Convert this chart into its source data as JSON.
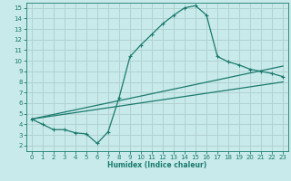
{
  "xlabel": "Humidex (Indice chaleur)",
  "bg_color": "#c8eaea",
  "grid_color": "#b0cece",
  "line_color": "#1a7a6e",
  "xlim": [
    -0.5,
    23.5
  ],
  "ylim": [
    1.5,
    15.5
  ],
  "xticks": [
    0,
    1,
    2,
    3,
    4,
    5,
    6,
    7,
    8,
    9,
    10,
    11,
    12,
    13,
    14,
    15,
    16,
    17,
    18,
    19,
    20,
    21,
    22,
    23
  ],
  "yticks": [
    2,
    3,
    4,
    5,
    6,
    7,
    8,
    9,
    10,
    11,
    12,
    13,
    14,
    15
  ],
  "curve_x": [
    0,
    1,
    2,
    3,
    4,
    5,
    6,
    7,
    8,
    9,
    10,
    11,
    12,
    13,
    14,
    15,
    16,
    17,
    18,
    19,
    20,
    21,
    22,
    23
  ],
  "curve_y": [
    4.5,
    4.0,
    3.5,
    3.5,
    3.2,
    3.1,
    2.2,
    3.3,
    6.5,
    10.4,
    11.5,
    12.5,
    13.5,
    14.3,
    15.0,
    15.2,
    14.3,
    10.4,
    9.9,
    9.6,
    9.2,
    9.0,
    8.8,
    8.5
  ],
  "line2_x": [
    0,
    23
  ],
  "line2_y": [
    4.5,
    9.5
  ],
  "line3_x": [
    0,
    23
  ],
  "line3_y": [
    4.5,
    8.0
  ]
}
